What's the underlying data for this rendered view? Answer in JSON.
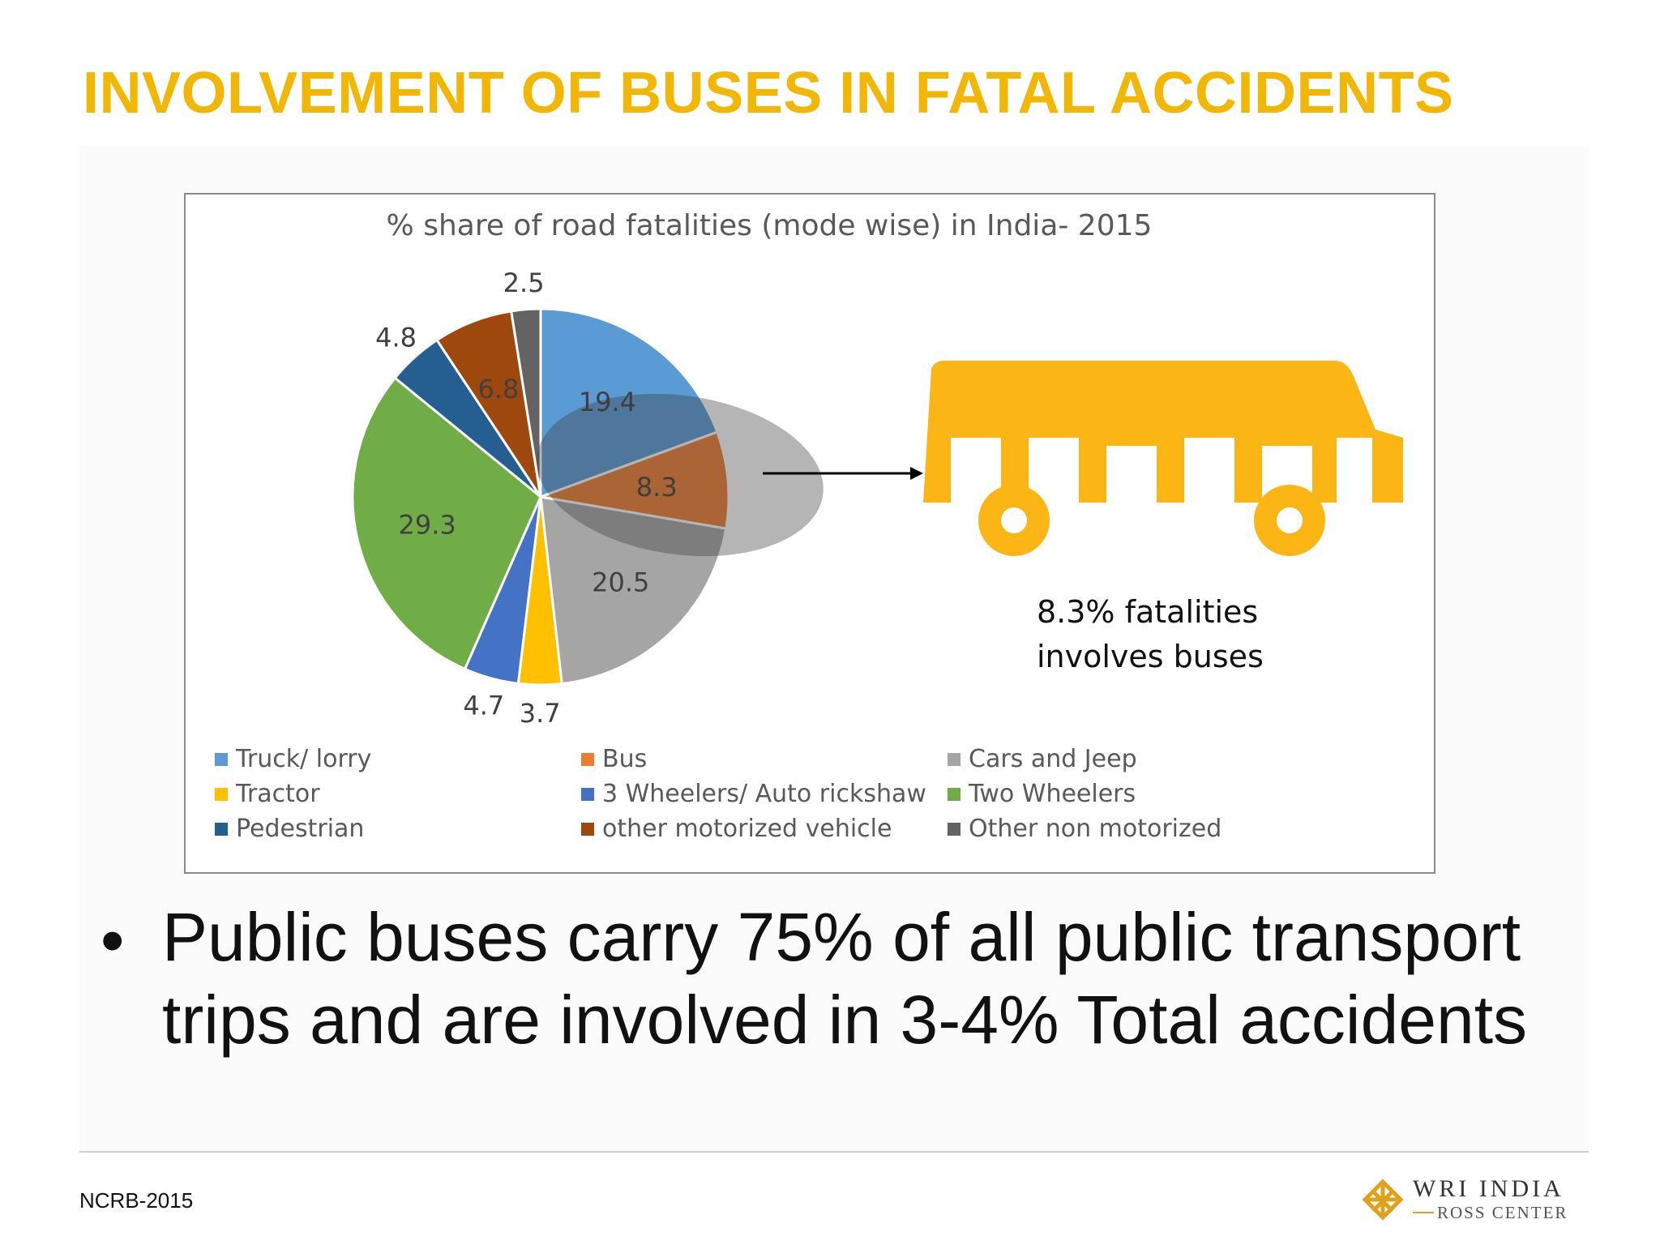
{
  "slide": {
    "title": "INVOLVEMENT OF BUSES IN FATAL ACCIDENTS",
    "bullet": "Public buses carry 75% of all public transport trips and are involved in 3-4% Total accidents",
    "source": "NCRB-2015",
    "logo_line1": "WRI INDIA",
    "logo_line2": "ROSS CENTER",
    "callout_line1": "8.3% fatalities",
    "callout_line2": "involves buses",
    "bus_icon": "bus-icon",
    "accent_color": "#F2B705"
  },
  "chart_data": {
    "type": "pie",
    "title": "% share of road fatalities (mode wise) in India- 2015",
    "series": [
      {
        "name": "Truck/ lorry",
        "value": 19.4,
        "label": "19.4",
        "color": "#5B9BD5"
      },
      {
        "name": "Bus",
        "value": 8.3,
        "label": "8.3",
        "color": "#ED7D31"
      },
      {
        "name": "Cars and Jeep",
        "value": 20.5,
        "label": "20.5",
        "color": "#A5A5A5"
      },
      {
        "name": "Tractor",
        "value": 3.7,
        "label": "3.7",
        "color": "#FFC000"
      },
      {
        "name": "3 Wheelers/ Auto rickshaw",
        "value": 4.7,
        "label": "4.7",
        "color": "#4472C4"
      },
      {
        "name": "Two Wheelers",
        "value": 29.3,
        "label": "29.3",
        "color": "#70AD47"
      },
      {
        "name": "Pedestrian",
        "value": 4.8,
        "label": "4.8",
        "color": "#255E91"
      },
      {
        "name": "other motorized vehicle",
        "value": 6.8,
        "label": "6.8",
        "color": "#9E480E"
      },
      {
        "name": "Other non motorized",
        "value": 2.5,
        "label": "2.5",
        "color": "#636363"
      }
    ],
    "legend_position": "bottom",
    "highlight": "Bus"
  }
}
